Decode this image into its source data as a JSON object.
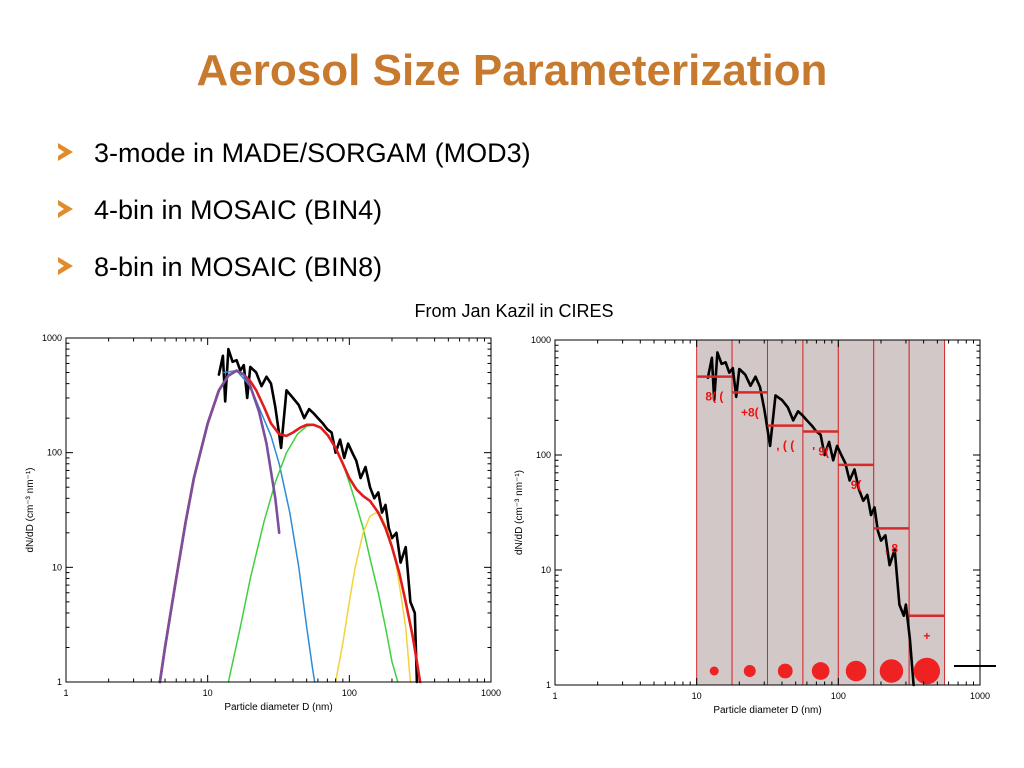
{
  "slide": {
    "title": "Aerosol Size Parameterization",
    "bullets": [
      "3-mode in MADE/SORGAM (MOD3)",
      "4-bin in MOSAIC (BIN4)",
      "8-bin in MOSAIC (BIN8)"
    ],
    "credit": "From Jan Kazil in CIRES"
  },
  "colors": {
    "title": "#c77a2e",
    "bullet_arrow": "#e08c2c",
    "observed": "#000000",
    "mode_sum": "#e21b1b",
    "mode1": "#7b4f9e",
    "mode2": "#2e8bd6",
    "mode3": "#3ed13e",
    "mode4": "#f4d23a",
    "bin_fill": "#d3c8c8",
    "bin_edge": "#d42a2a",
    "bin_mark": "#ee2222"
  },
  "chart_data": [
    {
      "type": "line",
      "log_x": true,
      "log_y": true,
      "xlabel": "Particle diameter D (nm)",
      "ylabel": "dN/dD (cm⁻³ nm⁻¹)",
      "xlim": [
        1,
        1000
      ],
      "ylim": [
        1,
        1000
      ],
      "x_ticks": [
        "1",
        "10",
        "100",
        "1000"
      ],
      "y_ticks": [
        "1",
        "10",
        "100",
        "1000"
      ],
      "grid": false,
      "series": [
        {
          "role": "observed",
          "x": [
            12,
            12.8,
            13.3,
            14,
            15,
            16,
            17,
            18,
            19,
            20,
            22,
            24,
            26,
            28,
            30,
            33,
            36,
            40,
            44,
            48,
            52,
            56,
            60,
            65,
            70,
            75,
            80,
            86,
            92,
            98,
            105,
            112,
            120,
            130,
            140,
            150,
            160,
            170,
            180,
            190,
            200,
            215,
            230,
            250,
            270,
            290,
            300
          ],
          "y": [
            480,
            700,
            280,
            800,
            620,
            640,
            520,
            580,
            300,
            560,
            500,
            380,
            460,
            400,
            250,
            110,
            350,
            300,
            260,
            200,
            240,
            220,
            200,
            180,
            160,
            150,
            100,
            130,
            90,
            120,
            100,
            85,
            60,
            75,
            50,
            40,
            45,
            30,
            35,
            22,
            18,
            20,
            11,
            15,
            5,
            4,
            1
          ]
        },
        {
          "role": "mode_sum",
          "x": [
            4.6,
            5,
            6,
            7,
            8,
            10,
            12,
            14,
            16,
            18,
            20,
            22,
            25,
            28,
            32,
            36,
            40,
            45,
            50,
            56,
            63,
            71,
            80,
            90,
            100,
            112,
            125,
            140,
            160,
            180,
            200,
            225,
            250,
            280,
            300,
            316
          ],
          "y": [
            1,
            2,
            8,
            25,
            60,
            180,
            350,
            470,
            520,
            480,
            420,
            350,
            250,
            180,
            145,
            140,
            150,
            165,
            175,
            175,
            165,
            140,
            110,
            80,
            60,
            48,
            42,
            38,
            30,
            22,
            15,
            9,
            5,
            2.5,
            1.5,
            1
          ]
        },
        {
          "role": "mode1",
          "x": [
            4.6,
            5,
            6,
            7,
            8,
            10,
            12,
            14,
            16,
            18,
            20,
            23,
            26,
            30,
            32
          ],
          "y": [
            1,
            2,
            8,
            25,
            60,
            180,
            350,
            470,
            520,
            480,
            380,
            230,
            120,
            40,
            20
          ]
        },
        {
          "role": "mode2",
          "x": [
            13,
            16,
            20,
            24,
            28,
            32,
            38,
            44,
            50,
            55,
            57
          ],
          "y": [
            500,
            520,
            380,
            220,
            140,
            80,
            30,
            10,
            3,
            1.3,
            1
          ]
        },
        {
          "role": "mode3",
          "x": [
            14,
            17,
            20,
            25,
            30,
            36,
            43,
            50,
            56,
            63,
            71,
            80,
            90,
            100,
            112,
            125,
            140,
            160,
            180,
            200,
            220
          ],
          "y": [
            1,
            3,
            8,
            25,
            55,
            100,
            145,
            170,
            175,
            165,
            140,
            110,
            80,
            55,
            35,
            22,
            12,
            6,
            3,
            1.5,
            1
          ]
        },
        {
          "role": "mode4",
          "x": [
            80,
            90,
            100,
            110,
            125,
            140,
            155,
            170,
            190,
            210,
            230,
            250,
            270
          ],
          "y": [
            1,
            2.2,
            5,
            10,
            20,
            28,
            30,
            27,
            20,
            12,
            6,
            3,
            1
          ]
        }
      ]
    },
    {
      "type": "line",
      "log_x": true,
      "log_y": true,
      "xlabel": "Particle diameter D (nm)",
      "ylabel": "dN/dD (cm⁻³ nm⁻¹)",
      "xlim": [
        1,
        1000
      ],
      "ylim": [
        1,
        1000
      ],
      "x_ticks": [
        "1",
        "10",
        "100",
        "1000"
      ],
      "y_ticks": [
        "1",
        "10",
        "100",
        "1000"
      ],
      "grid": false,
      "bin_edges": [
        10,
        17.78,
        31.62,
        56.23,
        100,
        177.8,
        316.2,
        562.3
      ],
      "bin_means": [
        480,
        350,
        180,
        160,
        82,
        23,
        4
      ],
      "bin_labels": [
        "8( (",
        "+8(",
        ", ( (",
        "' 9(",
        "9(",
        ", 8",
        "+"
      ],
      "bin_markers": [
        13.3,
        23.7,
        42.2,
        75,
        133.4,
        237,
        421.6
      ],
      "series": [
        {
          "role": "observed",
          "x": [
            12,
            12.8,
            13.3,
            14,
            15,
            16,
            17,
            18,
            19,
            20,
            22,
            24,
            26,
            28,
            30,
            33,
            36,
            40,
            44,
            48,
            52,
            56,
            60,
            65,
            70,
            75,
            80,
            86,
            92,
            98,
            105,
            112,
            120,
            130,
            140,
            150,
            160,
            170,
            180,
            190,
            200,
            215,
            230,
            250,
            270,
            290,
            300,
            320,
            340
          ],
          "y": [
            470,
            700,
            300,
            780,
            620,
            640,
            520,
            570,
            320,
            560,
            500,
            400,
            480,
            390,
            250,
            120,
            330,
            300,
            260,
            200,
            240,
            220,
            200,
            180,
            160,
            150,
            100,
            130,
            90,
            120,
            100,
            85,
            60,
            75,
            50,
            40,
            45,
            30,
            35,
            22,
            18,
            20,
            11,
            15,
            5,
            4,
            5,
            2.5,
            1
          ]
        }
      ]
    }
  ]
}
